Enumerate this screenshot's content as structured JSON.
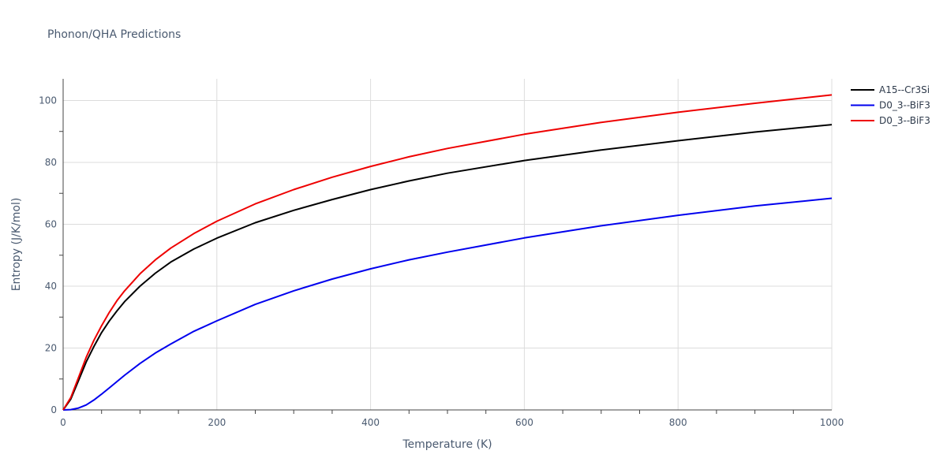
{
  "chart_data": {
    "type": "line",
    "title": "Phonon/QHA Predictions",
    "xlabel": "Temperature (K)",
    "ylabel": "Entropy (J/K/mol)",
    "xlim": [
      0,
      1000
    ],
    "ylim": [
      0,
      107
    ],
    "x_ticks": [
      0,
      200,
      400,
      600,
      800,
      1000
    ],
    "y_ticks": [
      0,
      20,
      40,
      60,
      80,
      100
    ],
    "x_tick_labels": [
      "0",
      "200",
      "400",
      "600",
      "800",
      "1000"
    ],
    "y_tick_labels": [
      "0",
      "20",
      "40",
      "60",
      "80",
      "100"
    ],
    "grid": true,
    "legend_position": "top-right",
    "series": [
      {
        "name": "A15--Cr3Si",
        "color": "#000000",
        "x": [
          0,
          10,
          20,
          30,
          40,
          50,
          60,
          70,
          80,
          100,
          120,
          140,
          170,
          200,
          250,
          300,
          350,
          400,
          450,
          500,
          600,
          700,
          800,
          900,
          1000
        ],
        "y": [
          0,
          3.5,
          9.5,
          15.5,
          20.5,
          25,
          28.7,
          32,
          35,
          40,
          44.2,
          47.8,
          52,
          55.5,
          60.5,
          64.5,
          68,
          71.2,
          74,
          76.5,
          80.6,
          84,
          87,
          89.8,
          92.2
        ]
      },
      {
        "name": "D0_3--BiF3",
        "color": "#0000ee",
        "x": [
          0,
          10,
          20,
          30,
          40,
          50,
          60,
          80,
          100,
          120,
          140,
          170,
          200,
          250,
          300,
          350,
          400,
          450,
          500,
          600,
          700,
          800,
          900,
          1000
        ],
        "y": [
          0,
          0.1,
          0.6,
          1.6,
          3.2,
          5.1,
          7.1,
          11.2,
          15.0,
          18.4,
          21.3,
          25.4,
          28.8,
          34.1,
          38.5,
          42.3,
          45.6,
          48.5,
          51.0,
          55.6,
          59.5,
          62.9,
          65.9,
          68.4
        ]
      },
      {
        "name": "D0_3--BiF3",
        "color": "#ee0000",
        "x": [
          0,
          10,
          20,
          30,
          40,
          50,
          60,
          70,
          80,
          100,
          120,
          140,
          170,
          200,
          250,
          300,
          350,
          400,
          450,
          500,
          600,
          700,
          800,
          900,
          1000
        ],
        "y": [
          0,
          4,
          10.5,
          17,
          22.5,
          27.2,
          31.5,
          35.3,
          38.5,
          44,
          48.5,
          52.3,
          57,
          61,
          66.6,
          71.2,
          75.2,
          78.7,
          81.8,
          84.5,
          89.1,
          92.9,
          96.2,
          99.1,
          101.8
        ]
      }
    ]
  }
}
